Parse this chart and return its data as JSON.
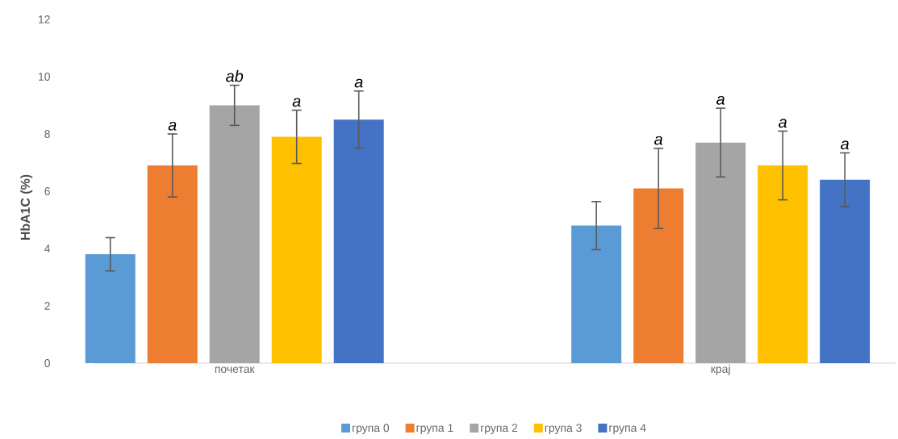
{
  "chart_data": {
    "type": "bar",
    "ylabel": "HbA1C (%)",
    "categories": [
      "почетак",
      "крај"
    ],
    "series": [
      {
        "name": "група 0",
        "color": "#5b9bd5",
        "values": [
          3.8,
          4.8
        ],
        "errors": [
          0.58,
          0.84
        ]
      },
      {
        "name": "група 1",
        "color": "#ed7d31",
        "values": [
          6.9,
          6.1
        ],
        "errors": [
          1.1,
          1.4
        ]
      },
      {
        "name": "група 2",
        "color": "#a5a5a5",
        "values": [
          9.0,
          7.7
        ],
        "errors": [
          0.7,
          1.2
        ]
      },
      {
        "name": "група 3",
        "color": "#ffc000",
        "values": [
          7.9,
          6.9
        ],
        "errors": [
          0.93,
          1.2
        ]
      },
      {
        "name": "група 4",
        "color": "#4472c4",
        "values": [
          8.5,
          6.4
        ],
        "errors": [
          1.0,
          0.94
        ]
      }
    ],
    "ylim": [
      0,
      12
    ],
    "yticks": [
      0,
      2,
      4,
      6,
      8,
      10,
      12
    ],
    "legend": "bottom",
    "annotations": [
      "a",
      "ab",
      "a",
      "a",
      "a",
      "a",
      "a",
      "a"
    ]
  }
}
